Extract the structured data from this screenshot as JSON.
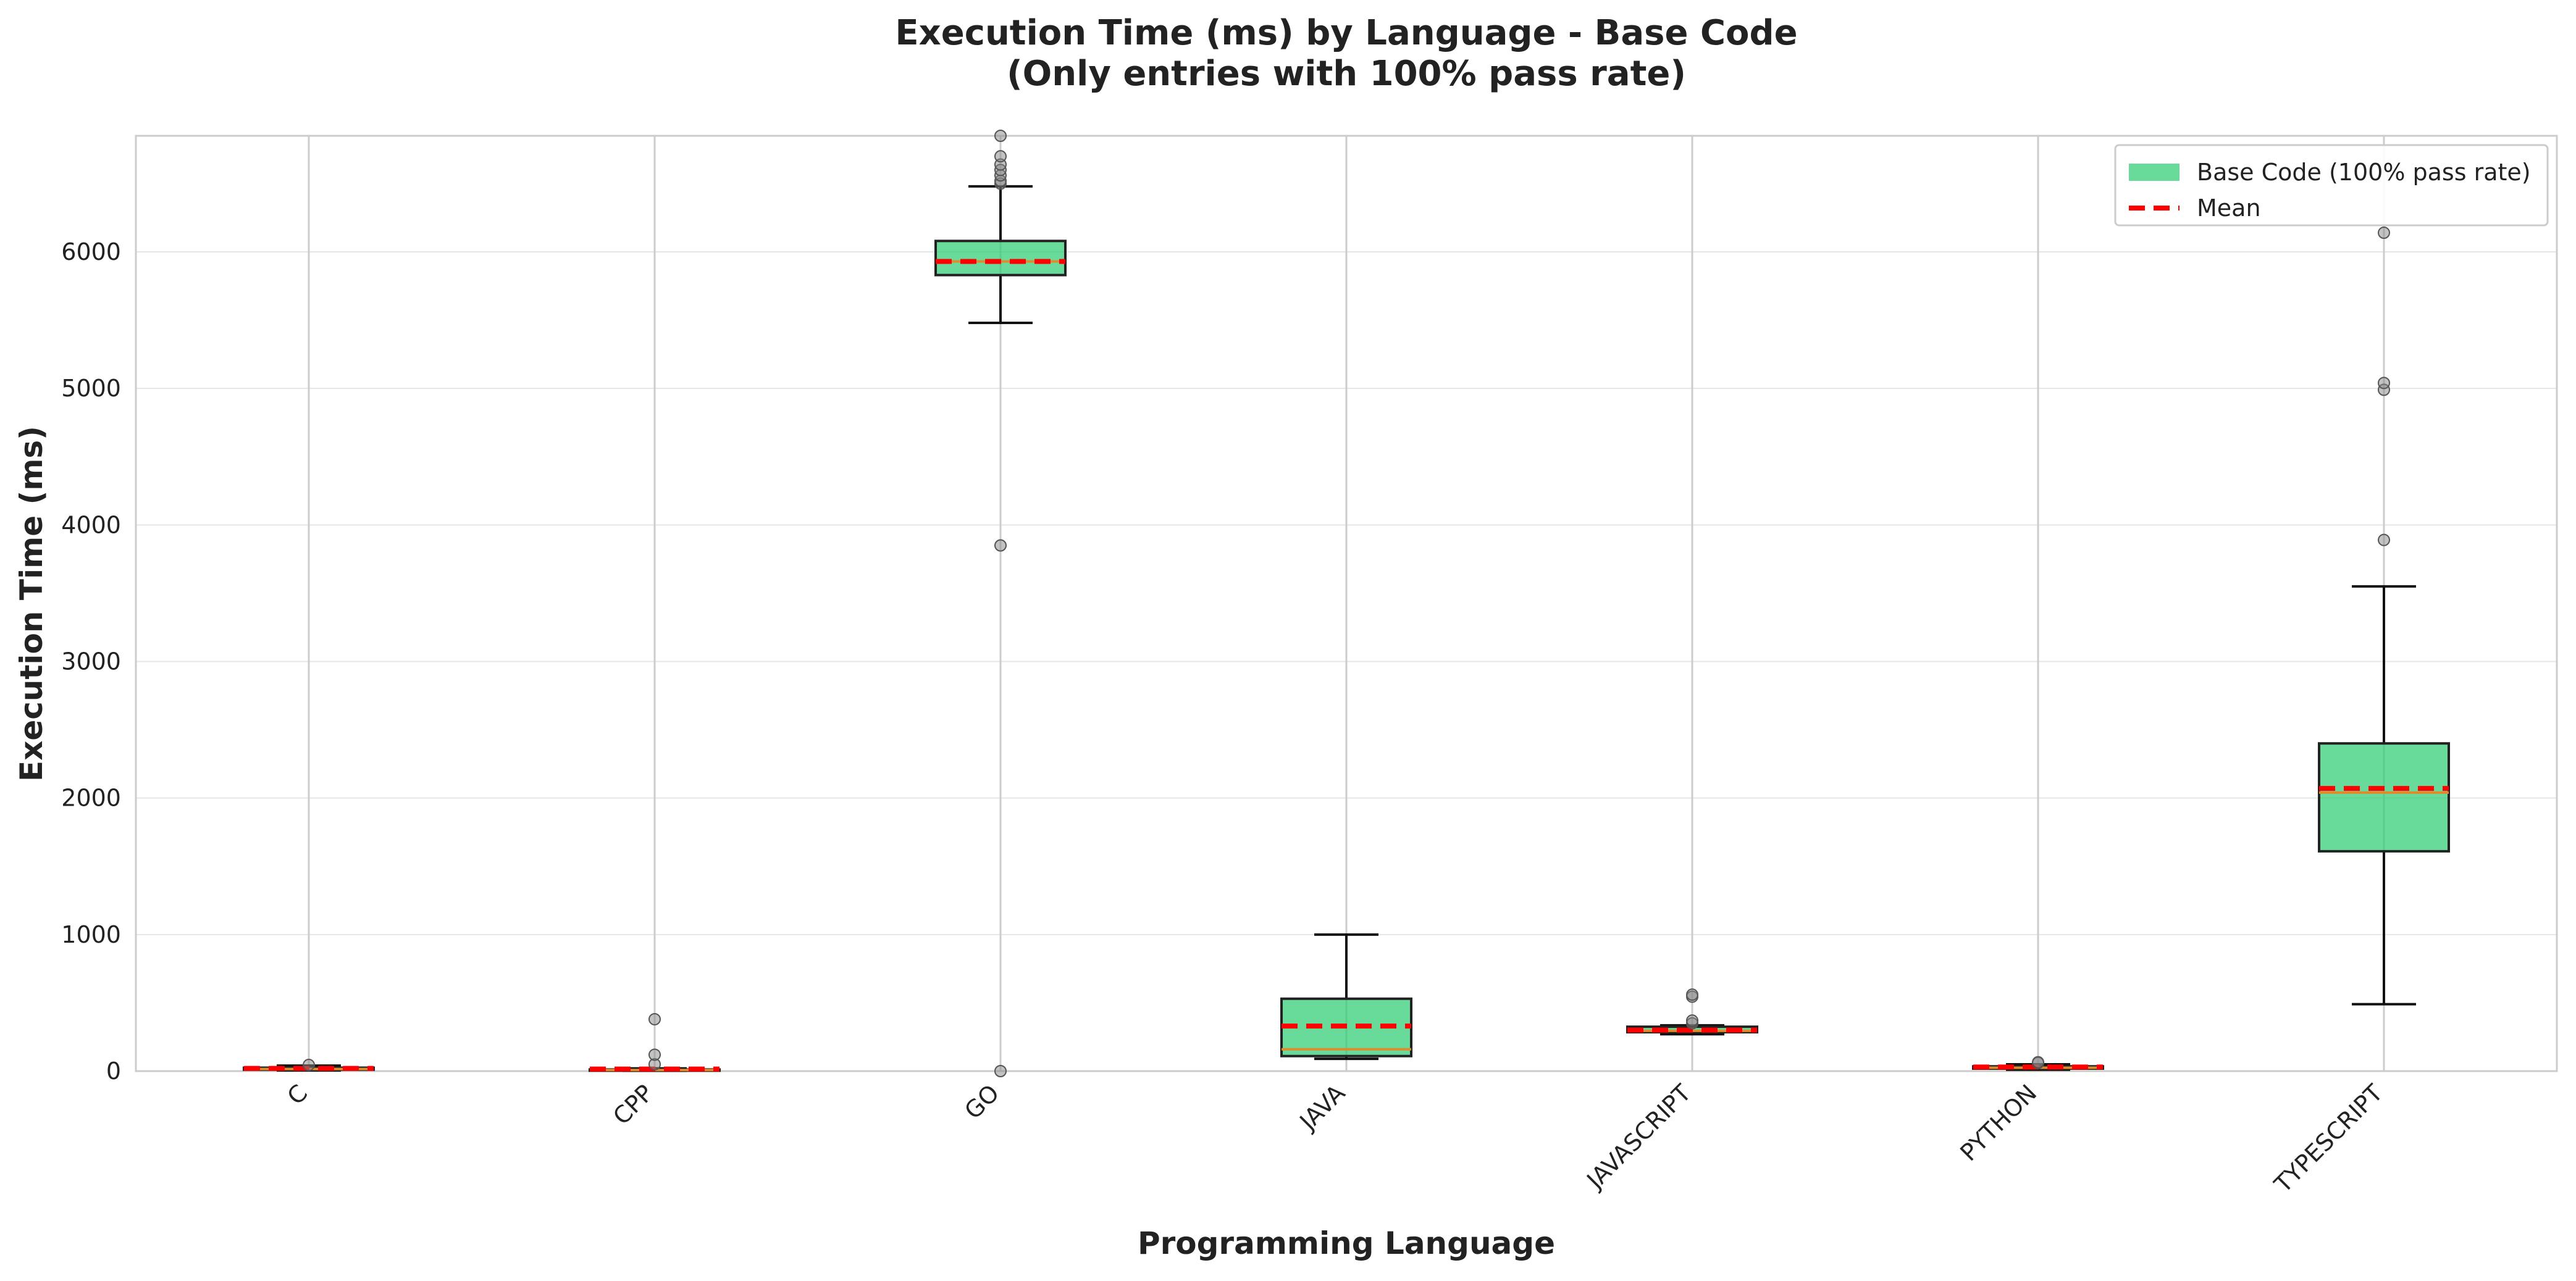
{
  "chart_data": {
    "type": "box",
    "title": "Execution Time (ms) by Language - Base Code",
    "subtitle": "(Only entries with 100% pass rate)",
    "xlabel": "Programming Language",
    "ylabel": "Execution Time (ms)",
    "ylim": [
      0,
      6850
    ],
    "yticks": [
      0,
      1000,
      2000,
      3000,
      4000,
      5000,
      6000
    ],
    "grid": true,
    "legend_position": "top-right",
    "legend": [
      {
        "label": "Base Code (100% pass rate)",
        "kind": "box"
      },
      {
        "label": "Mean",
        "kind": "mean-line"
      }
    ],
    "colors": {
      "box_fill": "#2ecc71",
      "box_edge": "#222222",
      "mean_line": "#ff0000",
      "median_line": "#e08a2c",
      "outlier": "#888888",
      "grid": "#e6e6e6"
    },
    "categories": [
      "C",
      "CPP",
      "GO",
      "JAVA",
      "JAVASCRIPT",
      "PYTHON",
      "TYPESCRIPT"
    ],
    "boxes": [
      {
        "category": "C",
        "whisker_low": 5,
        "q1": 10,
        "median": 15,
        "q3": 25,
        "whisker_high": 40,
        "mean": 20,
        "outliers": [
          45
        ]
      },
      {
        "category": "CPP",
        "whisker_low": 2,
        "q1": 5,
        "median": 8,
        "q3": 12,
        "whisker_high": 20,
        "mean": 15,
        "outliers": [
          50,
          120,
          380
        ]
      },
      {
        "category": "GO",
        "whisker_low": 5480,
        "q1": 5830,
        "median": 5930,
        "q3": 6080,
        "whisker_high": 6480,
        "mean": 5930,
        "outliers": [
          0,
          3850,
          6500,
          6520,
          6560,
          6600,
          6640,
          6700,
          6850
        ]
      },
      {
        "category": "JAVA",
        "whisker_low": 90,
        "q1": 110,
        "median": 160,
        "q3": 530,
        "whisker_high": 1000,
        "mean": 330,
        "outliers": []
      },
      {
        "category": "JAVASCRIPT",
        "whisker_low": 270,
        "q1": 285,
        "median": 295,
        "q3": 325,
        "whisker_high": 335,
        "mean": 300,
        "outliers": [
          350,
          370,
          545,
          560
        ]
      },
      {
        "category": "PYTHON",
        "whisker_low": 10,
        "q1": 18,
        "median": 25,
        "q3": 35,
        "whisker_high": 50,
        "mean": 30,
        "outliers": [
          60,
          65
        ]
      },
      {
        "category": "TYPESCRIPT",
        "whisker_low": 490,
        "q1": 1610,
        "median": 2040,
        "q3": 2400,
        "whisker_high": 3550,
        "mean": 2070,
        "outliers": [
          3890,
          4990,
          5040,
          6140
        ]
      }
    ]
  }
}
